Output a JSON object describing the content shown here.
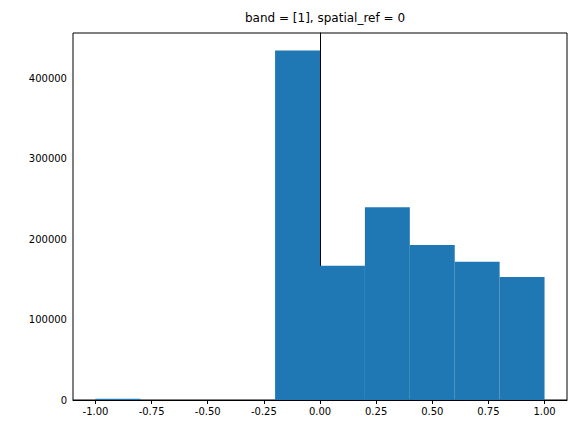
{
  "chart_data": {
    "type": "histogram",
    "title": "band = [1], spatial_ref = 0",
    "bins": [
      -1.0,
      -0.8,
      -0.6,
      -0.4,
      -0.2,
      0.0,
      0.2,
      0.4,
      0.6,
      0.8,
      1.0
    ],
    "values": [
      1500,
      0,
      0,
      0,
      435000,
      167000,
      240000,
      193000,
      172000,
      153000
    ],
    "color": "#1f77b4",
    "xlim": [
      -1.1,
      1.1
    ],
    "xticks": [
      {
        "value": -1.0,
        "label": "-1.00"
      },
      {
        "value": -0.75,
        "label": "-0.75"
      },
      {
        "value": -0.5,
        "label": "-0.50"
      },
      {
        "value": -0.25,
        "label": "-0.25"
      },
      {
        "value": 0.0,
        "label": "0.00"
      },
      {
        "value": 0.25,
        "label": "0.25"
      },
      {
        "value": 0.5,
        "label": "0.50"
      },
      {
        "value": 0.75,
        "label": "0.75"
      },
      {
        "value": 1.0,
        "label": "1.00"
      }
    ],
    "ylim": [
      0,
      456750
    ],
    "yticks": [
      0,
      100000,
      200000,
      300000,
      400000
    ],
    "grid": false
  }
}
